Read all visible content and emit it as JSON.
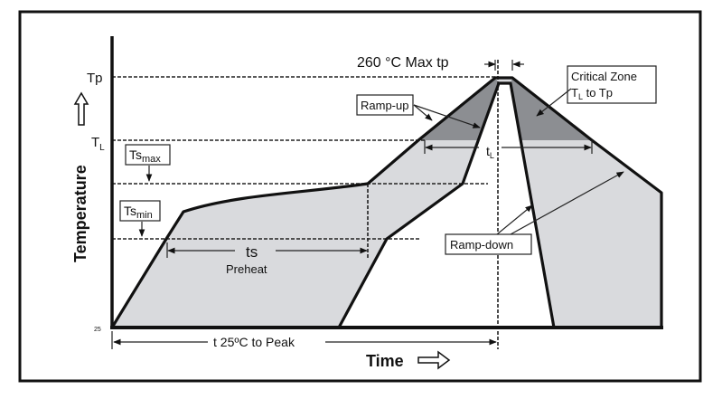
{
  "diagram": {
    "y_axis_label": "Temperature",
    "x_axis_label": "Time",
    "levels": {
      "tp": "Tp",
      "tl_main": "T",
      "tl_sub": "L",
      "tsmax_main": "Ts",
      "tsmax_sub": "max",
      "tsmin_main": "Ts",
      "tsmin_sub": "min",
      "origin": "25"
    },
    "annotations": {
      "peak": "260 °C Max  tp",
      "ramp_up": "Ramp-up",
      "ramp_down": "Ramp-down",
      "critical_zone_line1": "Critical Zone",
      "critical_zone_line2_main": "T",
      "critical_zone_line2_sub": "L",
      "critical_zone_line2_rest": " to Tp",
      "tl_duration_main": "t",
      "tl_duration_sub": "L",
      "ts_duration": "ts",
      "preheat": "Preheat",
      "time_to_peak": "t  25ºC to Peak"
    },
    "colors": {
      "envelope_fill": "#d9dadd",
      "critical_zone_fill": "#8c8e92",
      "line": "#111111"
    }
  }
}
